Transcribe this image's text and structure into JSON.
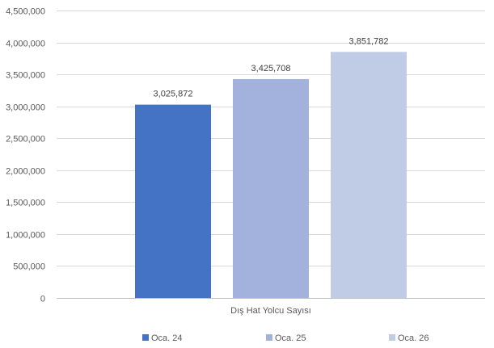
{
  "chart_data": {
    "type": "bar",
    "categories": [
      "Dış Hat Yolcu Sayısı"
    ],
    "series": [
      {
        "name": "Oca. 24",
        "values": [
          3025872
        ],
        "label": "3,025,872",
        "color": "#4472C4"
      },
      {
        "name": "Oca. 25",
        "values": [
          3425708
        ],
        "label": "3,425,708",
        "color": "#A2B2DC"
      },
      {
        "name": "Oca. 26",
        "values": [
          3851782
        ],
        "label": "3,851,782",
        "color": "#C0CBE6"
      }
    ],
    "title": "",
    "xlabel": "",
    "ylabel": "",
    "ylim": [
      0,
      4500000
    ],
    "yticks": [
      0,
      500000,
      1000000,
      1500000,
      2000000,
      2500000,
      3000000,
      3500000,
      4000000,
      4500000
    ],
    "ytick_labels": [
      "0",
      "500,000",
      "1,000,000",
      "1,500,000",
      "2,000,000",
      "2,500,000",
      "3,000,000",
      "3,500,000",
      "4,000,000",
      "4,500,000"
    ],
    "grid": true,
    "legend_position": "bottom",
    "colors": {
      "grid": "#D9D9D9",
      "axis": "#BFBFBF",
      "text": "#595959"
    }
  }
}
